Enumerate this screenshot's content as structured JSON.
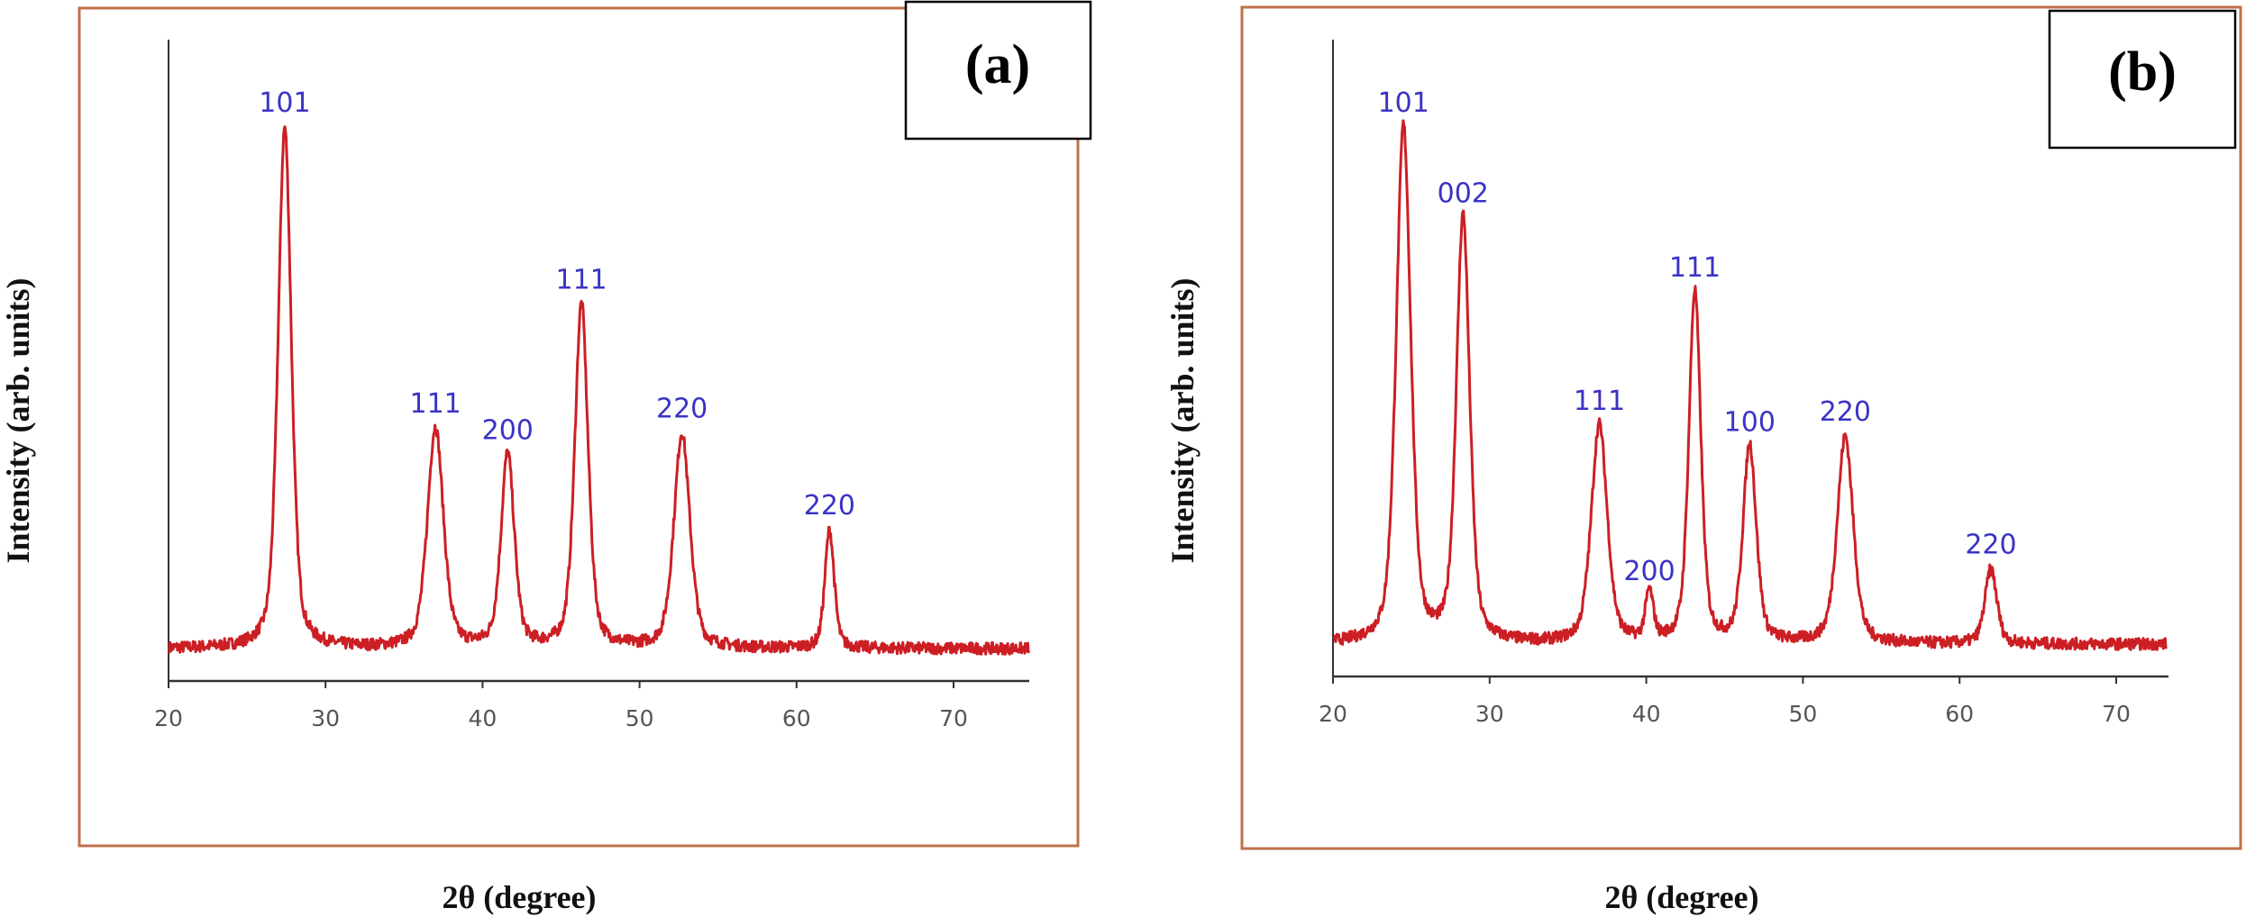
{
  "chart_data": [
    {
      "type": "line",
      "panel_label": "(a)",
      "xlabel": "2θ (degree)",
      "ylabel": "Intensity (arb. units)",
      "xlim": [
        20,
        74.8
      ],
      "xticks": [
        20,
        30,
        40,
        50,
        60,
        70
      ],
      "ylim": [
        0,
        110
      ],
      "grid": false,
      "line_color": "#cc1f24",
      "label_color": "#3a33c4",
      "peaks": [
        {
          "x": 27.4,
          "y": 100,
          "width": 1.0,
          "label": "101"
        },
        {
          "x": 37.0,
          "y": 44,
          "width": 1.2,
          "label": "111"
        },
        {
          "x": 41.6,
          "y": 39,
          "width": 1.0,
          "label": "200"
        },
        {
          "x": 46.3,
          "y": 67,
          "width": 1.0,
          "label": "111"
        },
        {
          "x": 52.7,
          "y": 43,
          "width": 1.2,
          "label": "220"
        },
        {
          "x": 62.1,
          "y": 25,
          "width": 0.7,
          "label": "220"
        }
      ],
      "baseline": 3
    },
    {
      "type": "line",
      "panel_label": "(b)",
      "xlabel": "2θ (degree)",
      "ylabel": "Intensity (arb. units)",
      "xlim": [
        20,
        73.2
      ],
      "xticks": [
        20,
        30,
        40,
        50,
        60,
        70
      ],
      "ylim": [
        0,
        110
      ],
      "grid": false,
      "line_color": "#cc1f24",
      "label_color": "#3a33c4",
      "peaks": [
        {
          "x": 24.5,
          "y": 100,
          "width": 1.1,
          "label": "101"
        },
        {
          "x": 28.3,
          "y": 83,
          "width": 1.0,
          "label": "002"
        },
        {
          "x": 37.0,
          "y": 44,
          "width": 1.2,
          "label": "111"
        },
        {
          "x": 40.2,
          "y": 12,
          "width": 0.6,
          "label": "200"
        },
        {
          "x": 43.1,
          "y": 69,
          "width": 0.9,
          "label": "111"
        },
        {
          "x": 46.6,
          "y": 40,
          "width": 1.0,
          "label": "100"
        },
        {
          "x": 52.7,
          "y": 42,
          "width": 1.2,
          "label": "220"
        },
        {
          "x": 62.0,
          "y": 17,
          "width": 0.9,
          "label": "220"
        }
      ],
      "baseline": 3
    }
  ]
}
